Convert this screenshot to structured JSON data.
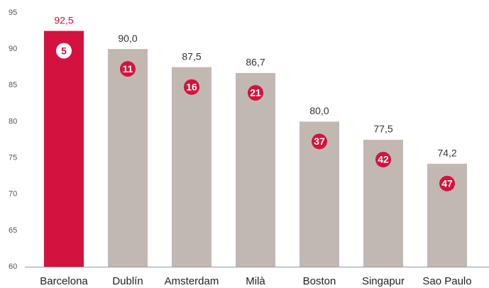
{
  "chart_data": {
    "type": "bar",
    "categories": [
      "Barcelona",
      "Dublín",
      "Amsterdam",
      "Milà",
      "Boston",
      "Singapur",
      "Sao Paulo"
    ],
    "values": [
      92.5,
      90.0,
      87.5,
      86.7,
      80.0,
      77.5,
      74.2
    ],
    "value_labels": [
      "92,5",
      "90,0",
      "87,5",
      "86,7",
      "80,0",
      "77,5",
      "74,2"
    ],
    "ranks": [
      5,
      11,
      16,
      21,
      37,
      42,
      47
    ],
    "colors": [
      "#d4123f",
      "#c2b8b2",
      "#c2b8b2",
      "#c2b8b2",
      "#c2b8b2",
      "#c2b8b2",
      "#c2b8b2"
    ],
    "badge_color": "#d4123f",
    "ylim": [
      60,
      95
    ],
    "yticks": [
      60,
      65,
      70,
      75,
      80,
      85,
      90,
      95
    ],
    "grid": false
  }
}
